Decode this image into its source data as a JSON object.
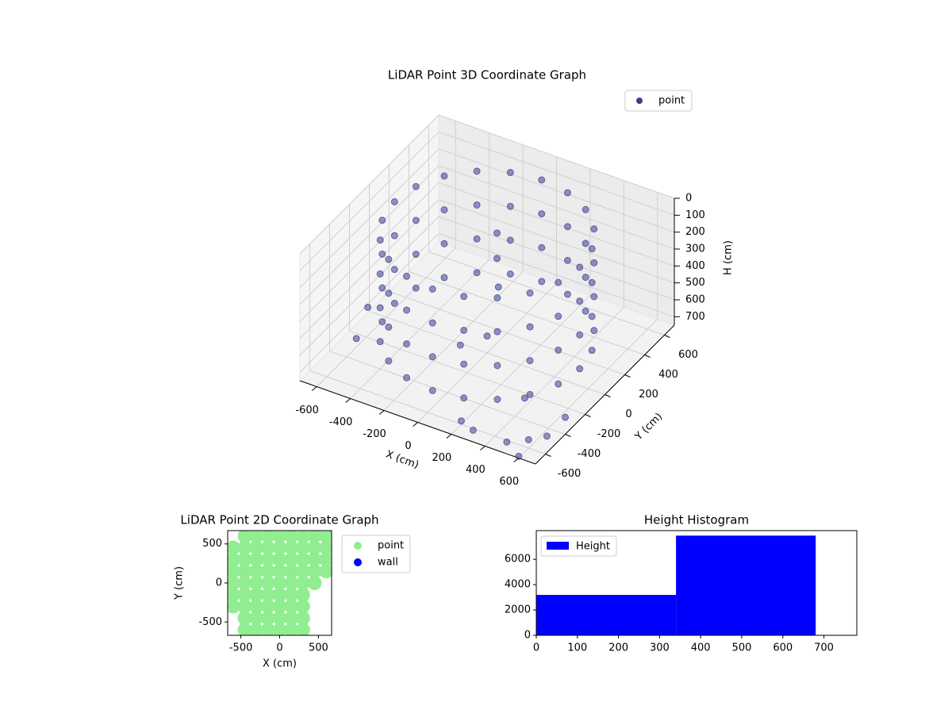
{
  "chart_data": [
    {
      "type": "scatter3d",
      "title": "LiDAR Point 3D Coordinate Graph",
      "xlabel": "X (cm)",
      "ylabel": "Y (cm)",
      "zlabel": "H (cm)",
      "xlim": [
        -700,
        700
      ],
      "ylim": [
        -700,
        700
      ],
      "zlim": [
        750,
        0
      ],
      "xticks": [
        -600,
        -400,
        -200,
        0,
        200,
        400,
        600
      ],
      "yticks": [
        -600,
        -400,
        -200,
        0,
        200,
        400,
        600
      ],
      "zticks": [
        0,
        100,
        200,
        300,
        400,
        500,
        600,
        700
      ],
      "grid": true,
      "legend": "upper right",
      "series": [
        {
          "name": "point",
          "color": "#3b3f8f",
          "x": [
            550,
            523,
            445,
            323,
            170,
            0,
            -170,
            -323,
            -445,
            -523,
            -550,
            -523,
            -445,
            -323,
            -170,
            0,
            170,
            323,
            445,
            523,
            550,
            523,
            445,
            323,
            170,
            0,
            -170,
            -323,
            -445,
            -523,
            -550,
            -523,
            -445,
            -323,
            -170,
            0,
            170,
            323,
            445,
            523,
            550,
            523,
            445,
            323,
            170,
            0,
            -170,
            -323,
            -445,
            -523,
            -550,
            -523,
            -445,
            -323,
            -170,
            0,
            170,
            323,
            445,
            523,
            550,
            523,
            445,
            323,
            170,
            0,
            -170,
            -323,
            -445,
            -523,
            -550,
            -523,
            -445,
            -323,
            -170,
            0,
            170,
            323,
            445,
            523,
            0,
            0,
            20,
            0,
            -100,
            600,
            500,
            650,
            700,
            300,
            -600,
            -650,
            400,
            600,
            200
          ],
          "y": [
            0,
            170,
            323,
            445,
            523,
            550,
            523,
            445,
            323,
            170,
            0,
            -170,
            -323,
            -445,
            -523,
            -550,
            -523,
            -445,
            -323,
            -170,
            0,
            170,
            323,
            445,
            523,
            550,
            523,
            445,
            323,
            170,
            0,
            -170,
            -323,
            -445,
            -523,
            -550,
            -523,
            -445,
            -323,
            -170,
            0,
            170,
            323,
            445,
            523,
            550,
            523,
            445,
            323,
            170,
            0,
            -170,
            -323,
            -445,
            -523,
            -550,
            -523,
            -445,
            -323,
            -170,
            0,
            170,
            323,
            445,
            523,
            550,
            523,
            445,
            323,
            170,
            0,
            -170,
            -323,
            -445,
            -523,
            -550,
            -523,
            -445,
            -323,
            -170,
            100,
            100,
            80,
            0,
            -100,
            -600,
            -650,
            -500,
            -400,
            -650,
            -300,
            -100,
            -300,
            -700,
            -600
          ],
          "z": [
            50,
            50,
            50,
            50,
            50,
            50,
            50,
            50,
            50,
            50,
            50,
            50,
            50,
            50,
            50,
            50,
            50,
            50,
            50,
            50,
            250,
            250,
            250,
            250,
            250,
            250,
            250,
            250,
            250,
            250,
            250,
            250,
            250,
            250,
            250,
            250,
            250,
            250,
            250,
            250,
            450,
            450,
            450,
            450,
            450,
            450,
            450,
            450,
            450,
            450,
            450,
            450,
            450,
            450,
            450,
            450,
            450,
            450,
            450,
            450,
            650,
            650,
            650,
            650,
            650,
            650,
            650,
            650,
            650,
            650,
            650,
            650,
            650,
            650,
            650,
            650,
            650,
            650,
            650,
            650,
            100,
            250,
            400,
            650,
            680,
            700,
            720,
            720,
            650,
            720,
            700,
            650,
            700,
            740,
            730
          ]
        }
      ]
    },
    {
      "type": "scatter",
      "title": "LiDAR Point 2D Coordinate Graph",
      "xlabel": "X (cm)",
      "ylabel": "Y (cm)",
      "xlim": [
        -670,
        670
      ],
      "ylim": [
        -670,
        670
      ],
      "xticks": [
        -500,
        0,
        500
      ],
      "yticks": [
        -500,
        0,
        500
      ],
      "legend": "outside right",
      "series": [
        {
          "name": "point",
          "color": "#90ee90",
          "x": [
            -450,
            -300,
            -150,
            0,
            150,
            300,
            450,
            600,
            -600,
            -450,
            -300,
            -150,
            0,
            150,
            300,
            450,
            600,
            -600,
            -450,
            -300,
            -150,
            0,
            150,
            300,
            450,
            600,
            -600,
            -450,
            -300,
            -150,
            0,
            150,
            300,
            450,
            600,
            -600,
            -450,
            -300,
            -150,
            0,
            150,
            300,
            450,
            -600,
            -450,
            -300,
            -150,
            0,
            150,
            300,
            -600,
            -450,
            -300,
            -150,
            0,
            150,
            300,
            -450,
            -300,
            -150,
            0,
            150,
            300,
            -450,
            -300,
            -150,
            0,
            150,
            300
          ],
          "y": [
            600,
            600,
            600,
            600,
            600,
            600,
            600,
            600,
            450,
            450,
            450,
            450,
            450,
            450,
            450,
            450,
            450,
            300,
            300,
            300,
            300,
            300,
            300,
            300,
            300,
            300,
            150,
            150,
            150,
            150,
            150,
            150,
            150,
            150,
            150,
            0,
            0,
            0,
            0,
            0,
            0,
            0,
            0,
            -150,
            -150,
            -150,
            -150,
            -150,
            -150,
            -150,
            -300,
            -300,
            -300,
            -300,
            -300,
            -300,
            -300,
            -450,
            -450,
            -450,
            -450,
            -450,
            -450,
            -600,
            -600,
            -600,
            -600,
            -600,
            -600
          ]
        },
        {
          "name": "wall",
          "color": "#0000ff",
          "x": [],
          "y": []
        }
      ]
    },
    {
      "type": "histogram",
      "title": "Height Histogram",
      "xlim": [
        0,
        780
      ],
      "ylim": [
        0,
        8270
      ],
      "xticks": [
        0,
        100,
        200,
        300,
        400,
        500,
        600,
        700
      ],
      "yticks": [
        0,
        2000,
        4000,
        6000
      ],
      "legend": "upper left",
      "series": [
        {
          "name": "Height",
          "color": "#0000ff",
          "bins": [
            0,
            340,
            680
          ],
          "counts": [
            3190,
            7875
          ]
        }
      ]
    }
  ]
}
